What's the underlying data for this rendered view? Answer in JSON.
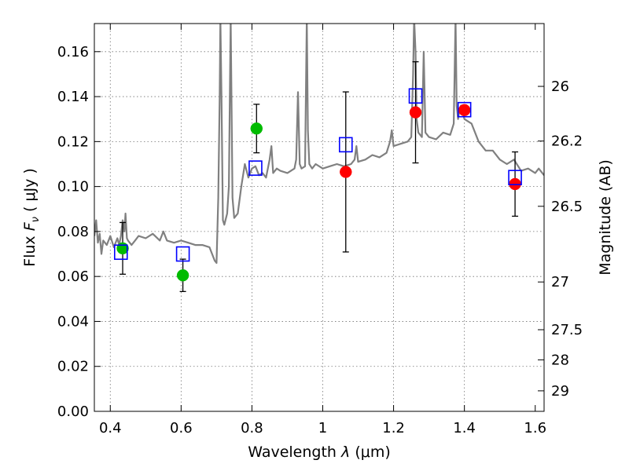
{
  "chart_data": {
    "type": "scatter",
    "xlabel_prefix": "Wavelength",
    "xlabel_symbol": "λ",
    "xlabel_unit": "(μm)",
    "ylabel_prefix": "Flux",
    "ylabel_symbol": "F",
    "ylabel_subscript": "ν",
    "ylabel_unit": "( μJy )",
    "y2label": "Magnitude (AB)",
    "xlim": [
      0.355,
      1.625
    ],
    "ylim": [
      0.0,
      0.1725
    ],
    "grid": true,
    "x_ticks": [
      0.4,
      0.6,
      0.8,
      1.0,
      1.2,
      1.4,
      1.6
    ],
    "x_tick_labels": [
      "0.4",
      "0.6",
      "0.8",
      "1",
      "1.2",
      "1.4",
      "1.6"
    ],
    "y_ticks": [
      0.0,
      0.02,
      0.04,
      0.06,
      0.08,
      0.1,
      0.12,
      0.14,
      0.16
    ],
    "y_tick_labels": [
      "0.00",
      "0.02",
      "0.04",
      "0.06",
      "0.08",
      "0.10",
      "0.12",
      "0.14",
      "0.16"
    ],
    "mag_ticks": [
      26,
      26.2,
      26.5,
      27,
      27.5,
      28,
      29
    ],
    "mag_tick_labels": [
      "26",
      "26.2",
      "26.5",
      "27",
      "27.5",
      "28",
      "29"
    ],
    "model_spectrum": {
      "color": "#808080",
      "x": [
        0.355,
        0.36,
        0.365,
        0.37,
        0.375,
        0.38,
        0.39,
        0.4,
        0.41,
        0.42,
        0.425,
        0.43,
        0.435,
        0.44,
        0.443,
        0.447,
        0.45,
        0.46,
        0.47,
        0.48,
        0.5,
        0.52,
        0.54,
        0.55,
        0.56,
        0.58,
        0.6,
        0.62,
        0.64,
        0.66,
        0.68,
        0.695,
        0.7,
        0.705,
        0.709,
        0.711,
        0.714,
        0.718,
        0.722,
        0.73,
        0.735,
        0.74,
        0.745,
        0.75,
        0.76,
        0.77,
        0.78,
        0.79,
        0.8,
        0.81,
        0.82,
        0.83,
        0.84,
        0.85,
        0.855,
        0.86,
        0.87,
        0.88,
        0.9,
        0.92,
        0.925,
        0.93,
        0.935,
        0.94,
        0.95,
        0.955,
        0.958,
        0.962,
        0.97,
        0.98,
        1.0,
        1.02,
        1.04,
        1.06,
        1.08,
        1.09,
        1.095,
        1.1,
        1.12,
        1.14,
        1.16,
        1.18,
        1.19,
        1.195,
        1.2,
        1.22,
        1.24,
        1.25,
        1.255,
        1.258,
        1.262,
        1.265,
        1.27,
        1.28,
        1.285,
        1.29,
        1.3,
        1.32,
        1.34,
        1.36,
        1.37,
        1.375,
        1.378,
        1.382,
        1.385,
        1.39,
        1.4,
        1.42,
        1.44,
        1.46,
        1.48,
        1.5,
        1.52,
        1.54,
        1.56,
        1.58,
        1.6,
        1.61,
        1.625
      ],
      "y": [
        0.078,
        0.085,
        0.075,
        0.079,
        0.07,
        0.076,
        0.074,
        0.078,
        0.073,
        0.077,
        0.074,
        0.078,
        0.085,
        0.08,
        0.088,
        0.077,
        0.076,
        0.074,
        0.076,
        0.078,
        0.077,
        0.079,
        0.076,
        0.08,
        0.076,
        0.075,
        0.076,
        0.075,
        0.074,
        0.074,
        0.073,
        0.067,
        0.066,
        0.095,
        0.14,
        0.175,
        0.14,
        0.085,
        0.083,
        0.088,
        0.1,
        0.175,
        0.095,
        0.086,
        0.088,
        0.1,
        0.11,
        0.104,
        0.108,
        0.109,
        0.105,
        0.106,
        0.104,
        0.112,
        0.118,
        0.106,
        0.108,
        0.107,
        0.106,
        0.108,
        0.112,
        0.142,
        0.11,
        0.108,
        0.109,
        0.175,
        0.125,
        0.11,
        0.108,
        0.11,
        0.108,
        0.109,
        0.11,
        0.109,
        0.11,
        0.112,
        0.118,
        0.111,
        0.112,
        0.114,
        0.113,
        0.115,
        0.12,
        0.125,
        0.118,
        0.119,
        0.12,
        0.122,
        0.15,
        0.175,
        0.16,
        0.13,
        0.124,
        0.122,
        0.16,
        0.124,
        0.122,
        0.121,
        0.124,
        0.123,
        0.128,
        0.175,
        0.136,
        0.13,
        0.133,
        0.136,
        0.13,
        0.128,
        0.12,
        0.116,
        0.116,
        0.112,
        0.11,
        0.112,
        0.107,
        0.108,
        0.106,
        0.108,
        0.105
      ]
    },
    "series": [
      {
        "name": "",
        "color": "#00bb00",
        "marker": "circle",
        "x": [
          0.435,
          0.605,
          0.813
        ],
        "y": [
          0.0725,
          0.0605,
          0.1258
        ],
        "yerr": [
          0.0115,
          0.0072,
          0.0108
        ]
      },
      {
        "name": "",
        "color": "#ff0000",
        "marker": "circle",
        "x": [
          1.065,
          1.262,
          1.4,
          1.543
        ],
        "y": [
          0.1065,
          0.133,
          0.134,
          0.1011
        ],
        "yerr": [
          0.0356,
          0.0225,
          0.0,
          0.0143
        ]
      },
      {
        "name": "",
        "color": "#0000ff",
        "marker": "open-square",
        "x": [
          0.43,
          0.605,
          0.81,
          1.065,
          1.262,
          1.4,
          1.543
        ],
        "y": [
          0.0708,
          0.07,
          0.1082,
          0.1186,
          0.1403,
          0.1342,
          0.104
        ]
      }
    ]
  }
}
